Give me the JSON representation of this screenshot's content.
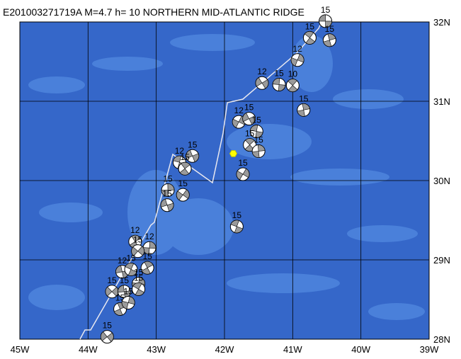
{
  "title": "E201003271719A M=4.7 h= 10 NORTHERN MID-ATLANTIC RIDGE",
  "map": {
    "xlim": [
      -45,
      -39
    ],
    "ylim": [
      28,
      32
    ],
    "xticks": [
      {
        "value": -45,
        "label": "45W"
      },
      {
        "value": -44,
        "label": "44W"
      },
      {
        "value": -43,
        "label": "43W"
      },
      {
        "value": -42,
        "label": "42W"
      },
      {
        "value": -41,
        "label": "41W"
      },
      {
        "value": -40,
        "label": "40W"
      },
      {
        "value": -39,
        "label": "39W"
      }
    ],
    "yticks": [
      {
        "value": 28,
        "label": "28N"
      },
      {
        "value": 29,
        "label": "29N"
      },
      {
        "value": 30,
        "label": "30N"
      },
      {
        "value": 31,
        "label": "31N"
      },
      {
        "value": 32,
        "label": "32N"
      }
    ],
    "epicenter": {
      "lon": -41.87,
      "lat": 30.34
    },
    "events": [
      {
        "lon": -40.52,
        "lat": 32.01,
        "depth": 15
      },
      {
        "lon": -40.75,
        "lat": 31.8,
        "depth": 15
      },
      {
        "lon": -40.46,
        "lat": 31.77,
        "depth": 15
      },
      {
        "lon": -40.93,
        "lat": 31.52,
        "depth": 12
      },
      {
        "lon": -41.45,
        "lat": 31.23,
        "depth": 12
      },
      {
        "lon": -41.2,
        "lat": 31.21,
        "depth": 15
      },
      {
        "lon": -41.0,
        "lat": 31.2,
        "depth": 10
      },
      {
        "lon": -40.84,
        "lat": 30.89,
        "depth": 15
      },
      {
        "lon": -41.79,
        "lat": 30.74,
        "depth": 12
      },
      {
        "lon": -41.64,
        "lat": 30.78,
        "depth": 15
      },
      {
        "lon": -41.53,
        "lat": 30.62,
        "depth": 15
      },
      {
        "lon": -41.63,
        "lat": 30.45,
        "depth": 15
      },
      {
        "lon": -41.5,
        "lat": 30.37,
        "depth": 15
      },
      {
        "lon": -41.73,
        "lat": 30.08,
        "depth": 15
      },
      {
        "lon": -42.47,
        "lat": 30.31,
        "depth": 15
      },
      {
        "lon": -42.66,
        "lat": 30.23,
        "depth": 12
      },
      {
        "lon": -42.58,
        "lat": 30.15,
        "depth": 15
      },
      {
        "lon": -42.83,
        "lat": 29.88,
        "depth": 15
      },
      {
        "lon": -42.61,
        "lat": 29.82,
        "depth": 15
      },
      {
        "lon": -42.84,
        "lat": 29.69,
        "depth": 15
      },
      {
        "lon": -41.82,
        "lat": 29.42,
        "depth": 15
      },
      {
        "lon": -43.31,
        "lat": 29.23,
        "depth": 12
      },
      {
        "lon": -43.1,
        "lat": 29.15,
        "depth": 12
      },
      {
        "lon": -43.27,
        "lat": 29.11,
        "depth": 15
      },
      {
        "lon": -43.5,
        "lat": 28.85,
        "depth": 12
      },
      {
        "lon": -43.37,
        "lat": 28.88,
        "depth": 15
      },
      {
        "lon": -43.13,
        "lat": 28.9,
        "depth": 15
      },
      {
        "lon": -43.26,
        "lat": 28.7,
        "depth": 15
      },
      {
        "lon": -43.65,
        "lat": 28.6,
        "depth": 15
      },
      {
        "lon": -43.47,
        "lat": 28.6,
        "depth": 15
      },
      {
        "lon": -43.26,
        "lat": 28.63,
        "depth": 15
      },
      {
        "lon": -43.53,
        "lat": 28.38,
        "depth": 15
      },
      {
        "lon": -43.41,
        "lat": 28.46,
        "depth": 15
      },
      {
        "lon": -43.72,
        "lat": 28.03,
        "depth": 15
      }
    ]
  }
}
